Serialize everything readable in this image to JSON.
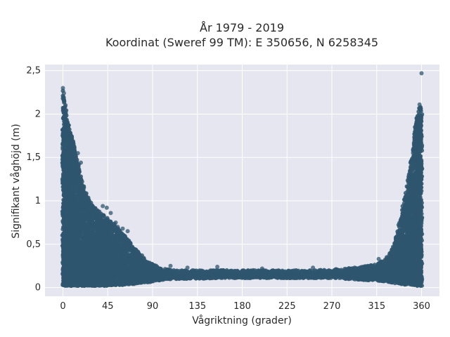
{
  "chart_data": {
    "type": "scatter",
    "title": "År 1979 - 2019",
    "subtitle": "Koordinat (Sweref 99 TM): E 350656, N 6258345",
    "xlabel": "Vågriktning (grader)",
    "ylabel": "Signifikant våghöjd (m)",
    "xlim": [
      -18,
      378
    ],
    "ylim": [
      -0.1,
      2.57
    ],
    "x_ticks": [
      0,
      45,
      90,
      135,
      180,
      225,
      270,
      315,
      360
    ],
    "x_tick_labels": [
      "0",
      "45",
      "90",
      "135",
      "180",
      "225",
      "270",
      "315",
      "360"
    ],
    "y_ticks": [
      0,
      0.5,
      1,
      1.5,
      2,
      2.5
    ],
    "y_tick_labels": [
      "0",
      "0,5",
      "1",
      "1,5",
      "2",
      "2,5"
    ],
    "grid": true,
    "marker_color": "#2f566e",
    "background_color": "#e5e6ef",
    "series": [
      {
        "direction": [
          0,
          5,
          10,
          15,
          20,
          25,
          30,
          35,
          40,
          45,
          50,
          55,
          60,
          65,
          70,
          75,
          80,
          85,
          90,
          95,
          100,
          110,
          120,
          135,
          150,
          165,
          180,
          195,
          210,
          225,
          240,
          255,
          270,
          285,
          300,
          315,
          325,
          330,
          335,
          340,
          345,
          350,
          355,
          358,
          360
        ],
        "max_height": [
          2.28,
          1.9,
          1.72,
          1.45,
          1.18,
          1.05,
          0.95,
          0.9,
          0.85,
          0.8,
          0.75,
          0.68,
          0.62,
          0.56,
          0.48,
          0.42,
          0.36,
          0.3,
          0.27,
          0.24,
          0.22,
          0.2,
          0.2,
          0.2,
          0.2,
          0.2,
          0.2,
          0.2,
          0.2,
          0.2,
          0.2,
          0.2,
          0.21,
          0.22,
          0.24,
          0.27,
          0.34,
          0.42,
          0.6,
          0.85,
          1.15,
          1.5,
          1.95,
          2.1,
          2.1
        ],
        "min_height": [
          0.02,
          0.02,
          0.02,
          0.02,
          0.02,
          0.02,
          0.02,
          0.02,
          0.02,
          0.02,
          0.03,
          0.03,
          0.03,
          0.04,
          0.04,
          0.05,
          0.06,
          0.06,
          0.07,
          0.08,
          0.09,
          0.1,
          0.1,
          0.1,
          0.11,
          0.11,
          0.11,
          0.11,
          0.11,
          0.11,
          0.11,
          0.11,
          0.11,
          0.1,
          0.09,
          0.08,
          0.07,
          0.06,
          0.05,
          0.04,
          0.03,
          0.03,
          0.02,
          0.02,
          0.02
        ]
      }
    ],
    "outliers": [
      {
        "x": 0,
        "y": 2.3
      },
      {
        "x": 1,
        "y": 2.24
      },
      {
        "x": 0.5,
        "y": 2.2
      },
      {
        "x": 1,
        "y": 2.15
      },
      {
        "x": 0,
        "y": 2.07
      },
      {
        "x": 2,
        "y": 2.02
      },
      {
        "x": 1,
        "y": 1.88
      },
      {
        "x": 3,
        "y": 1.9
      },
      {
        "x": 0,
        "y": 1.82
      },
      {
        "x": 7,
        "y": 1.75
      },
      {
        "x": 8,
        "y": 1.64
      },
      {
        "x": 15,
        "y": 1.55
      },
      {
        "x": 18,
        "y": 1.44
      },
      {
        "x": 13,
        "y": 1.4
      },
      {
        "x": 19,
        "y": 1.15
      },
      {
        "x": 21,
        "y": 1.1
      },
      {
        "x": 40,
        "y": 0.94
      },
      {
        "x": 44,
        "y": 0.92
      },
      {
        "x": 48,
        "y": 0.86
      },
      {
        "x": 53,
        "y": 0.75
      },
      {
        "x": 55,
        "y": 0.7
      },
      {
        "x": 60,
        "y": 0.68
      },
      {
        "x": 65,
        "y": 0.65
      },
      {
        "x": 108,
        "y": 0.25
      },
      {
        "x": 125,
        "y": 0.23
      },
      {
        "x": 155,
        "y": 0.24
      },
      {
        "x": 200,
        "y": 0.22
      },
      {
        "x": 251,
        "y": 0.23
      },
      {
        "x": 316,
        "y": 0.26
      },
      {
        "x": 317,
        "y": 0.33
      },
      {
        "x": 325,
        "y": 0.35
      },
      {
        "x": 343,
        "y": 0.72
      },
      {
        "x": 350,
        "y": 1.3
      },
      {
        "x": 354,
        "y": 1.72
      },
      {
        "x": 356,
        "y": 1.93
      },
      {
        "x": 357,
        "y": 1.98
      },
      {
        "x": 358,
        "y": 2.06
      },
      {
        "x": 358,
        "y": 2.11
      },
      {
        "x": 359,
        "y": 2.08
      },
      {
        "x": 360,
        "y": 2.47
      }
    ]
  }
}
